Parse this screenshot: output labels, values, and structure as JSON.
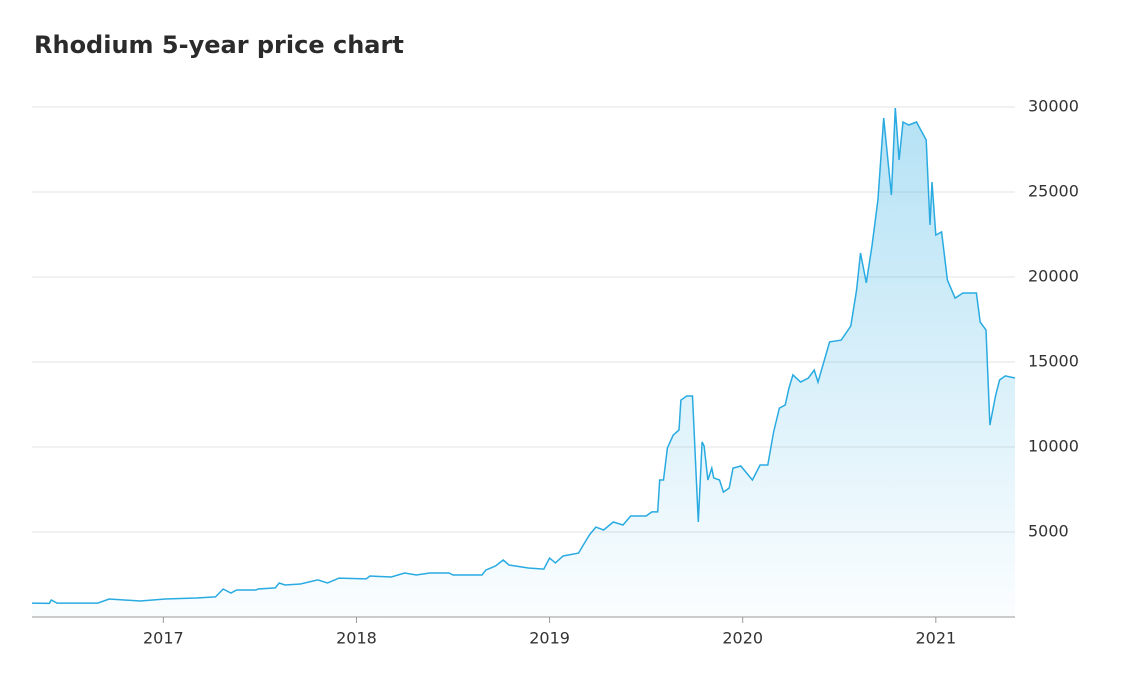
{
  "chart_data": {
    "type": "area",
    "title": "Rhodium 5-year price chart",
    "x": [
      2016.32,
      2016.41,
      2016.42,
      2016.45,
      2016.66,
      2016.72,
      2016.88,
      2017.01,
      2017.17,
      2017.27,
      2017.31,
      2017.35,
      2017.38,
      2017.48,
      2017.49,
      2017.58,
      2017.6,
      2017.63,
      2017.71,
      2017.8,
      2017.85,
      2017.91,
      2018.05,
      2018.07,
      2018.18,
      2018.25,
      2018.31,
      2018.38,
      2018.48,
      2018.5,
      2018.65,
      2018.67,
      2018.72,
      2018.76,
      2018.79,
      2018.89,
      2018.97,
      2019.0,
      2019.03,
      2019.07,
      2019.15,
      2019.19,
      2019.21,
      2019.24,
      2019.28,
      2019.33,
      2019.38,
      2019.42,
      2019.5,
      2019.53,
      2019.56,
      2019.57,
      2019.59,
      2019.61,
      2019.64,
      2019.67,
      2019.68,
      2019.71,
      2019.74,
      2019.77,
      2019.79,
      2019.8,
      2019.82,
      2019.84,
      2019.85,
      2019.88,
      2019.9,
      2019.93,
      2019.95,
      2019.99,
      2020.02,
      2020.05,
      2020.09,
      2020.13,
      2020.16,
      2020.19,
      2020.22,
      2020.24,
      2020.26,
      2020.3,
      2020.34,
      2020.37,
      2020.39,
      2020.45,
      2020.51,
      2020.56,
      2020.59,
      2020.61,
      2020.64,
      2020.67,
      2020.7,
      2020.73,
      2020.77,
      2020.79,
      2020.81,
      2020.83,
      2020.86,
      2020.9,
      2020.95,
      2020.97,
      2020.98,
      2021.0,
      2021.03,
      2021.06,
      2021.1,
      2021.14,
      2021.21,
      2021.23,
      2021.26,
      2021.28,
      2021.31,
      2021.33,
      2021.36,
      2021.41
    ],
    "series": [
      {
        "color": "#29abe2",
        "values": [
          820,
          800,
          1000,
          820,
          820,
          1060,
          940,
          1060,
          1120,
          1180,
          1650,
          1410,
          1590,
          1590,
          1650,
          1710,
          2000,
          1880,
          1940,
          2180,
          2000,
          2290,
          2240,
          2410,
          2350,
          2590,
          2470,
          2590,
          2590,
          2470,
          2470,
          2760,
          3000,
          3350,
          3060,
          2880,
          2820,
          3470,
          3180,
          3590,
          3760,
          4530,
          4880,
          5290,
          5120,
          5590,
          5410,
          5940,
          5940,
          6180,
          6180,
          8060,
          8060,
          9940,
          10700,
          11000,
          12760,
          13000,
          13000,
          5590,
          10300,
          10060,
          8060,
          8760,
          8180,
          8060,
          7350,
          7590,
          8760,
          8880,
          8470,
          8060,
          8940,
          8940,
          10880,
          12290,
          12470,
          13470,
          14240,
          13820,
          14060,
          14530,
          13820,
          16180,
          16290,
          17120,
          19240,
          21410,
          19650,
          21880,
          24530,
          29350,
          24820,
          29940,
          26880,
          29120,
          28940,
          29120,
          28060,
          23060,
          25590,
          22470,
          22650,
          19820,
          18760,
          19060,
          19060,
          17350,
          16880,
          11290,
          13060,
          13940,
          14180,
          14060
        ]
      }
    ],
    "xlim": [
      2016.32,
      2021.41
    ],
    "xticks": [
      2017,
      2018,
      2019,
      2020,
      2021
    ],
    "ylim": [
      0,
      30000
    ],
    "yticks": [
      5000,
      10000,
      15000,
      20000,
      25000,
      30000
    ],
    "grid": true
  }
}
